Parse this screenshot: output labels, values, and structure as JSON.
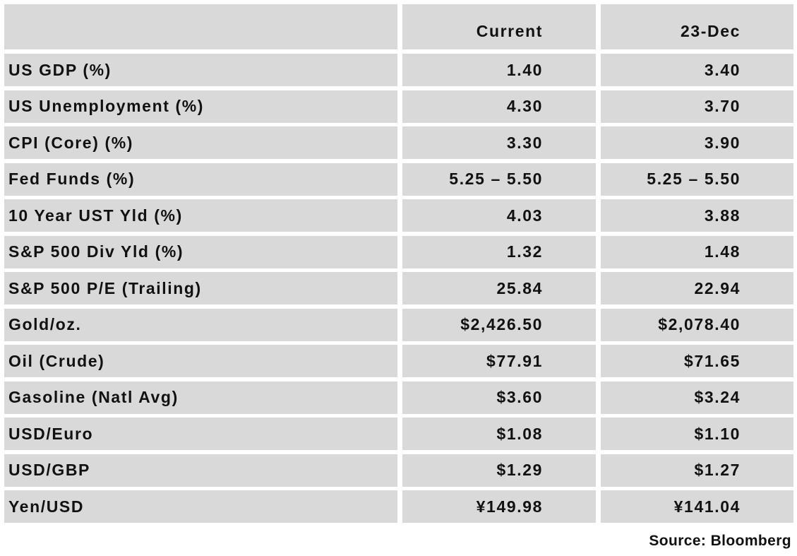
{
  "table": {
    "header": {
      "label": "",
      "current": "Current",
      "prior": "23-Dec"
    },
    "rows": [
      {
        "label": "US GDP (%)",
        "current": "1.40",
        "prior": "3.40"
      },
      {
        "label": "US Unemployment (%)",
        "current": "4.30",
        "prior": "3.70"
      },
      {
        "label": "CPI (Core) (%)",
        "current": "3.30",
        "prior": "3.90"
      },
      {
        "label": "Fed Funds (%)",
        "current": "5.25 – 5.50",
        "prior": "5.25 – 5.50"
      },
      {
        "label": "10 Year UST Yld (%)",
        "current": "4.03",
        "prior": "3.88"
      },
      {
        "label": "S&P 500 Div Yld (%)",
        "current": "1.32",
        "prior": "1.48"
      },
      {
        "label": "S&P 500 P/E (Trailing)",
        "current": "25.84",
        "prior": "22.94"
      },
      {
        "label": "Gold/oz.",
        "current": "$2,426.50",
        "prior": "$2,078.40"
      },
      {
        "label": "Oil (Crude)",
        "current": "$77.91",
        "prior": "$71.65"
      },
      {
        "label": "Gasoline (Natl Avg)",
        "current": "$3.60",
        "prior": "$3.24"
      },
      {
        "label": "USD/Euro",
        "current": "$1.08",
        "prior": "$1.10"
      },
      {
        "label": "USD/GBP",
        "current": "$1.29",
        "prior": "$1.27"
      },
      {
        "label": "Yen/USD",
        "current": "¥149.98",
        "prior": "¥141.04"
      }
    ]
  },
  "source": "Source: Bloomberg",
  "colors": {
    "cell_background": "#d9d9d9",
    "text": "#111111",
    "page_background": "#ffffff"
  }
}
